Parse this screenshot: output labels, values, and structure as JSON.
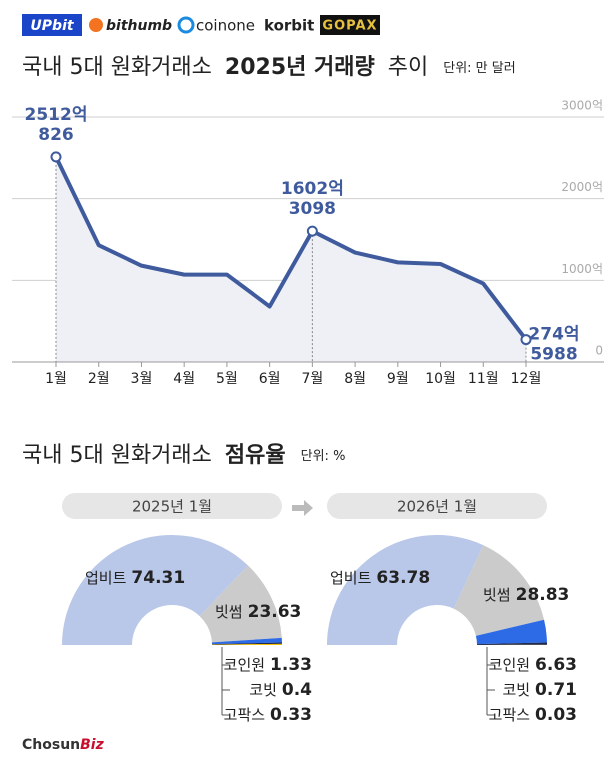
{
  "brands": [
    "UPbit",
    "bithumb",
    "coinone",
    "korbit",
    "GOPAX"
  ],
  "chart_data": [
    {
      "type": "line",
      "title": [
        "국내 5대 원화거래소",
        "2025년 거래량",
        "추이"
      ],
      "unit": "단위: 만 달러",
      "categories": [
        "1월",
        "2월",
        "3월",
        "4월",
        "5월",
        "6월",
        "7월",
        "8월",
        "9월",
        "10월",
        "11월",
        "12월"
      ],
      "values": [
        25120826,
        14300000,
        11800000,
        10700000,
        10700000,
        6800000,
        16023098,
        13400000,
        12200000,
        12000000,
        9600000,
        2745988
      ],
      "value_labels": [
        [
          "2512억",
          "826"
        ],
        null,
        null,
        null,
        null,
        null,
        [
          "1602억",
          "3098"
        ],
        null,
        null,
        null,
        null,
        [
          "274억",
          "5988"
        ]
      ],
      "color": "#3f5b9e",
      "ylim": [
        0,
        30000000
      ],
      "yticks": [
        0,
        {
          "value": 10000000,
          "label": "1000억"
        },
        {
          "value": 20000000,
          "label": "2000억"
        },
        {
          "value": 30000000,
          "label": "3000억"
        }
      ],
      "grid": true
    },
    {
      "type": "pie",
      "title": "2025년 1월",
      "series": [
        {
          "name": "업비트",
          "color": "#b9c7e8",
          "values": [
            74.31
          ]
        },
        {
          "name": "빗썸",
          "color": "#cbcbcb",
          "values": [
            23.63
          ]
        },
        {
          "name": "코인원",
          "color": "#2d6ae6",
          "values": [
            1.33
          ]
        },
        {
          "name": "코빗",
          "color": "#1d2a55",
          "values": [
            0.4
          ]
        },
        {
          "name": "고팍스",
          "color": "#f2c200",
          "values": [
            0.33
          ]
        }
      ]
    },
    {
      "type": "pie",
      "title": "2026년 1월",
      "series": [
        {
          "name": "업비트",
          "color": "#b9c7e8",
          "values": [
            63.78
          ]
        },
        {
          "name": "빗썸",
          "color": "#cbcbcb",
          "values": [
            28.83
          ]
        },
        {
          "name": "코인원",
          "color": "#2d6ae6",
          "values": [
            6.63
          ]
        },
        {
          "name": "코빗",
          "color": "#1d2a55",
          "values": [
            0.71
          ]
        },
        {
          "name": "고팍스",
          "color": "#f2c200",
          "values": [
            0.03
          ]
        }
      ]
    }
  ],
  "share_section": {
    "title": [
      "국내 5대 원화거래소",
      "점유율"
    ],
    "unit": "단위: %"
  },
  "credit": [
    "Chosun",
    "Biz"
  ]
}
